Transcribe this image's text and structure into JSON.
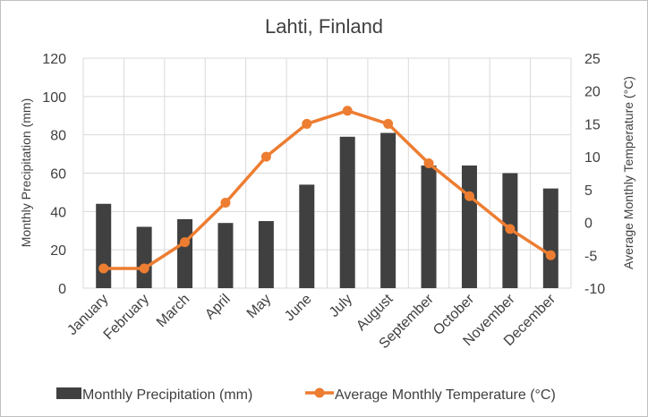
{
  "chart_data": {
    "type": "bar+line",
    "title": "Lahti, Finland",
    "categories": [
      "January",
      "February",
      "March",
      "April",
      "May",
      "June",
      "July",
      "August",
      "September",
      "October",
      "November",
      "December"
    ],
    "series": [
      {
        "name": "Monthly Precipitation  (mm)",
        "type": "bar",
        "axis": "left",
        "color": "#404040",
        "values": [
          44,
          32,
          36,
          34,
          35,
          54,
          79,
          81,
          64,
          64,
          60,
          52
        ]
      },
      {
        "name": "Average Monthly  Temperature (°C)",
        "type": "line",
        "axis": "right",
        "color": "#ed7d31",
        "values": [
          -7,
          -7,
          -3,
          3,
          10,
          15,
          17,
          15,
          9,
          4,
          -1,
          -5
        ]
      }
    ],
    "ylabel": "Monthly Precipitation  (mm)",
    "ylabel_right": "Average Monthly  Temperature (°C)",
    "ylim": [
      0,
      120
    ],
    "yticks": [
      0,
      20,
      40,
      60,
      80,
      100,
      120
    ],
    "ylim_right": [
      -10,
      25
    ],
    "yticks_right": [
      -10,
      -5,
      0,
      5,
      10,
      15,
      20,
      25
    ],
    "grid": true,
    "legend": "bottom"
  }
}
